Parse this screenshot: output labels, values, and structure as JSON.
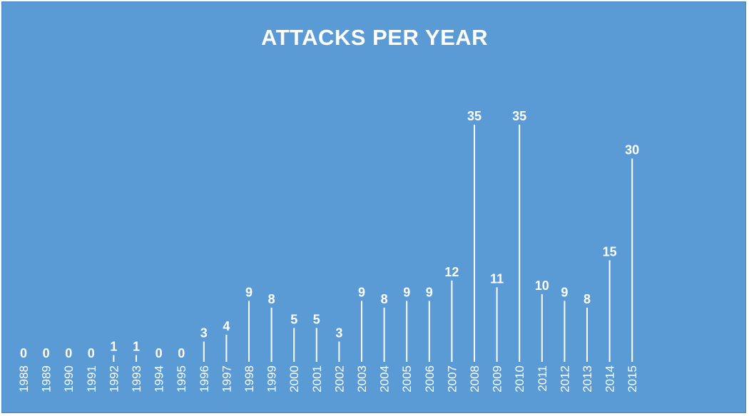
{
  "chart_data": {
    "type": "bar",
    "title": "ATTACKS PER YEAR",
    "xlabel": "",
    "ylabel": "",
    "categories": [
      "1988",
      "1989",
      "1990",
      "1991",
      "1992",
      "1993",
      "1994",
      "1995",
      "1996",
      "1997",
      "1998",
      "1999",
      "2000",
      "2001",
      "2002",
      "2003",
      "2004",
      "2005",
      "2006",
      "2007",
      "2008",
      "2009",
      "2010",
      "2011",
      "2012",
      "2013",
      "2014",
      "2015"
    ],
    "values": [
      0,
      0,
      0,
      0,
      1,
      1,
      0,
      0,
      3,
      4,
      9,
      8,
      5,
      5,
      3,
      9,
      8,
      9,
      9,
      12,
      35,
      11,
      35,
      10,
      9,
      8,
      15,
      30
    ],
    "ylim": [
      0,
      35
    ],
    "grid": false,
    "legend": "none",
    "colors": {
      "background": "#5b9bd5",
      "bar": "#ffffff",
      "text": "#ffffff"
    }
  }
}
